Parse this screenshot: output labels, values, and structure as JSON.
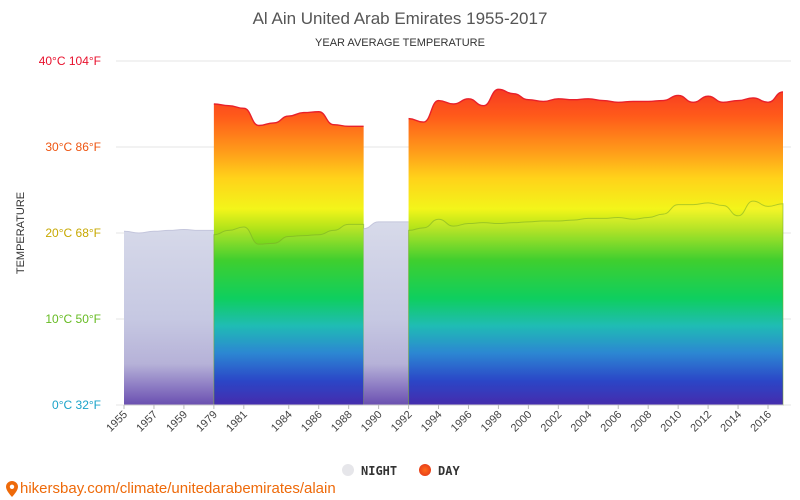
{
  "chart_data": {
    "type": "area",
    "title": "Al Ain United Arab Emirates 1955-2017",
    "subtitle": "YEAR AVERAGE TEMPERATURE",
    "ylabel": "TEMPERATURE",
    "ylim": [
      0,
      40
    ],
    "y_ticks": [
      {
        "value": 0,
        "label": "0°C 32°F",
        "color": "#1aa3c9"
      },
      {
        "value": 10,
        "label": "10°C 50°F",
        "color": "#66bb22"
      },
      {
        "value": 20,
        "label": "20°C 68°F",
        "color": "#c7a800"
      },
      {
        "value": 30,
        "label": "30°C 86°F",
        "color": "#ee5511"
      },
      {
        "value": 40,
        "label": "40°C 104°F",
        "color": "#e8102c"
      }
    ],
    "x_ticks": [
      "1955",
      "1957",
      "1959",
      "1979",
      "1981",
      "1984",
      "1986",
      "1988",
      "1990",
      "1992",
      "1994",
      "1996",
      "1998",
      "2000",
      "2002",
      "2004",
      "2006",
      "2008",
      "2010",
      "2012",
      "2014",
      "2016"
    ],
    "x": [
      1955,
      1956,
      1957,
      1958,
      1959,
      1960,
      1979,
      1980,
      1981,
      1982,
      1983,
      1984,
      1985,
      1986,
      1987,
      1988,
      1989,
      1990,
      1991,
      1992,
      1993,
      1994,
      1995,
      1996,
      1997,
      1998,
      1999,
      2000,
      2001,
      2002,
      2003,
      2004,
      2005,
      2006,
      2007,
      2008,
      2009,
      2010,
      2011,
      2012,
      2013,
      2014,
      2015,
      2016,
      2017
    ],
    "series": [
      {
        "name": "NIGHT",
        "color": "#e6e6ee",
        "values": [
          20.2,
          20.0,
          20.2,
          20.3,
          20.4,
          20.3,
          19.8,
          20.3,
          20.7,
          18.7,
          18.8,
          19.6,
          19.7,
          19.8,
          20.3,
          21.0,
          20.5,
          21.3,
          21.3,
          20.3,
          20.6,
          21.6,
          20.8,
          21.1,
          21.2,
          21.1,
          21.2,
          21.3,
          21.4,
          21.4,
          21.5,
          21.7,
          21.7,
          21.8,
          21.6,
          21.8,
          22.2,
          23.3,
          23.3,
          23.5,
          23.2,
          22.0,
          23.7,
          23.1,
          23.4
        ]
      },
      {
        "name": "DAY",
        "color": "#ee5511",
        "values": [
          null,
          null,
          null,
          null,
          null,
          null,
          35.0,
          34.8,
          34.5,
          32.5,
          32.8,
          33.6,
          34.0,
          34.1,
          32.6,
          32.4,
          null,
          null,
          null,
          33.3,
          32.9,
          35.4,
          35.0,
          35.6,
          34.8,
          36.7,
          36.2,
          35.5,
          35.3,
          35.6,
          35.5,
          35.6,
          35.4,
          35.2,
          35.3,
          35.3,
          35.4,
          36.0,
          35.2,
          35.9,
          35.2,
          35.4,
          35.7,
          35.2,
          36.4
        ]
      }
    ],
    "grid": true,
    "legend_position": "bottom-center"
  },
  "legend": {
    "night_label": "NIGHT",
    "day_label": "DAY"
  },
  "footer": {
    "source": "hikersbay.com/climate/unitedarabemirates/alain"
  }
}
